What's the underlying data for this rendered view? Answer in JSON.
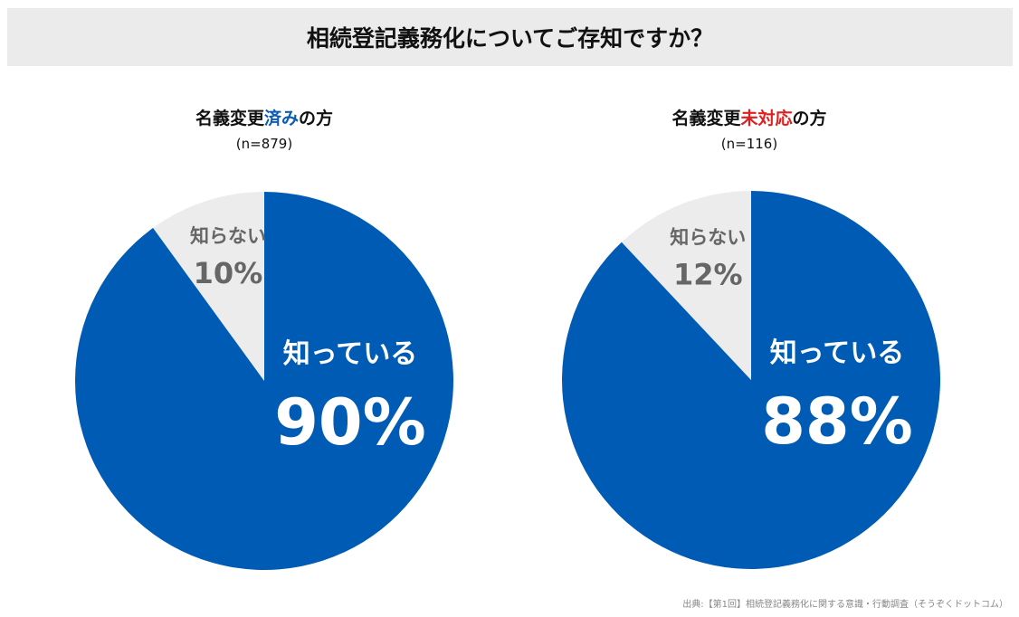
{
  "title": "相続登記義務化についてご存知ですか？",
  "chart_data": [
    {
      "type": "pie",
      "subtitle_prefix": "名義変更",
      "subtitle_highlight": "済み",
      "subtitle_suffix": "の方",
      "highlight_color": "#0a5bb5",
      "n_label": "(n=879)",
      "slices": [
        {
          "label": "知っている",
          "value": 90,
          "value_label": "90%",
          "color": "#005bb5",
          "text_color": "#ffffff"
        },
        {
          "label": "知らない",
          "value": 10,
          "value_label": "10%",
          "color": "#ececec",
          "text_color": "#666666"
        }
      ]
    },
    {
      "type": "pie",
      "subtitle_prefix": "名義変更",
      "subtitle_highlight": "未対応",
      "subtitle_suffix": "の方",
      "highlight_color": "#e02020",
      "n_label": "(n=116)",
      "slices": [
        {
          "label": "知っている",
          "value": 88,
          "value_label": "88%",
          "color": "#005bb5",
          "text_color": "#ffffff"
        },
        {
          "label": "知らない",
          "value": 12,
          "value_label": "12%",
          "color": "#ececec",
          "text_color": "#666666"
        }
      ]
    }
  ],
  "source": "出典:【第1回】相続登記義務化に関する意識・行動調査（そうぞくドットコム）"
}
